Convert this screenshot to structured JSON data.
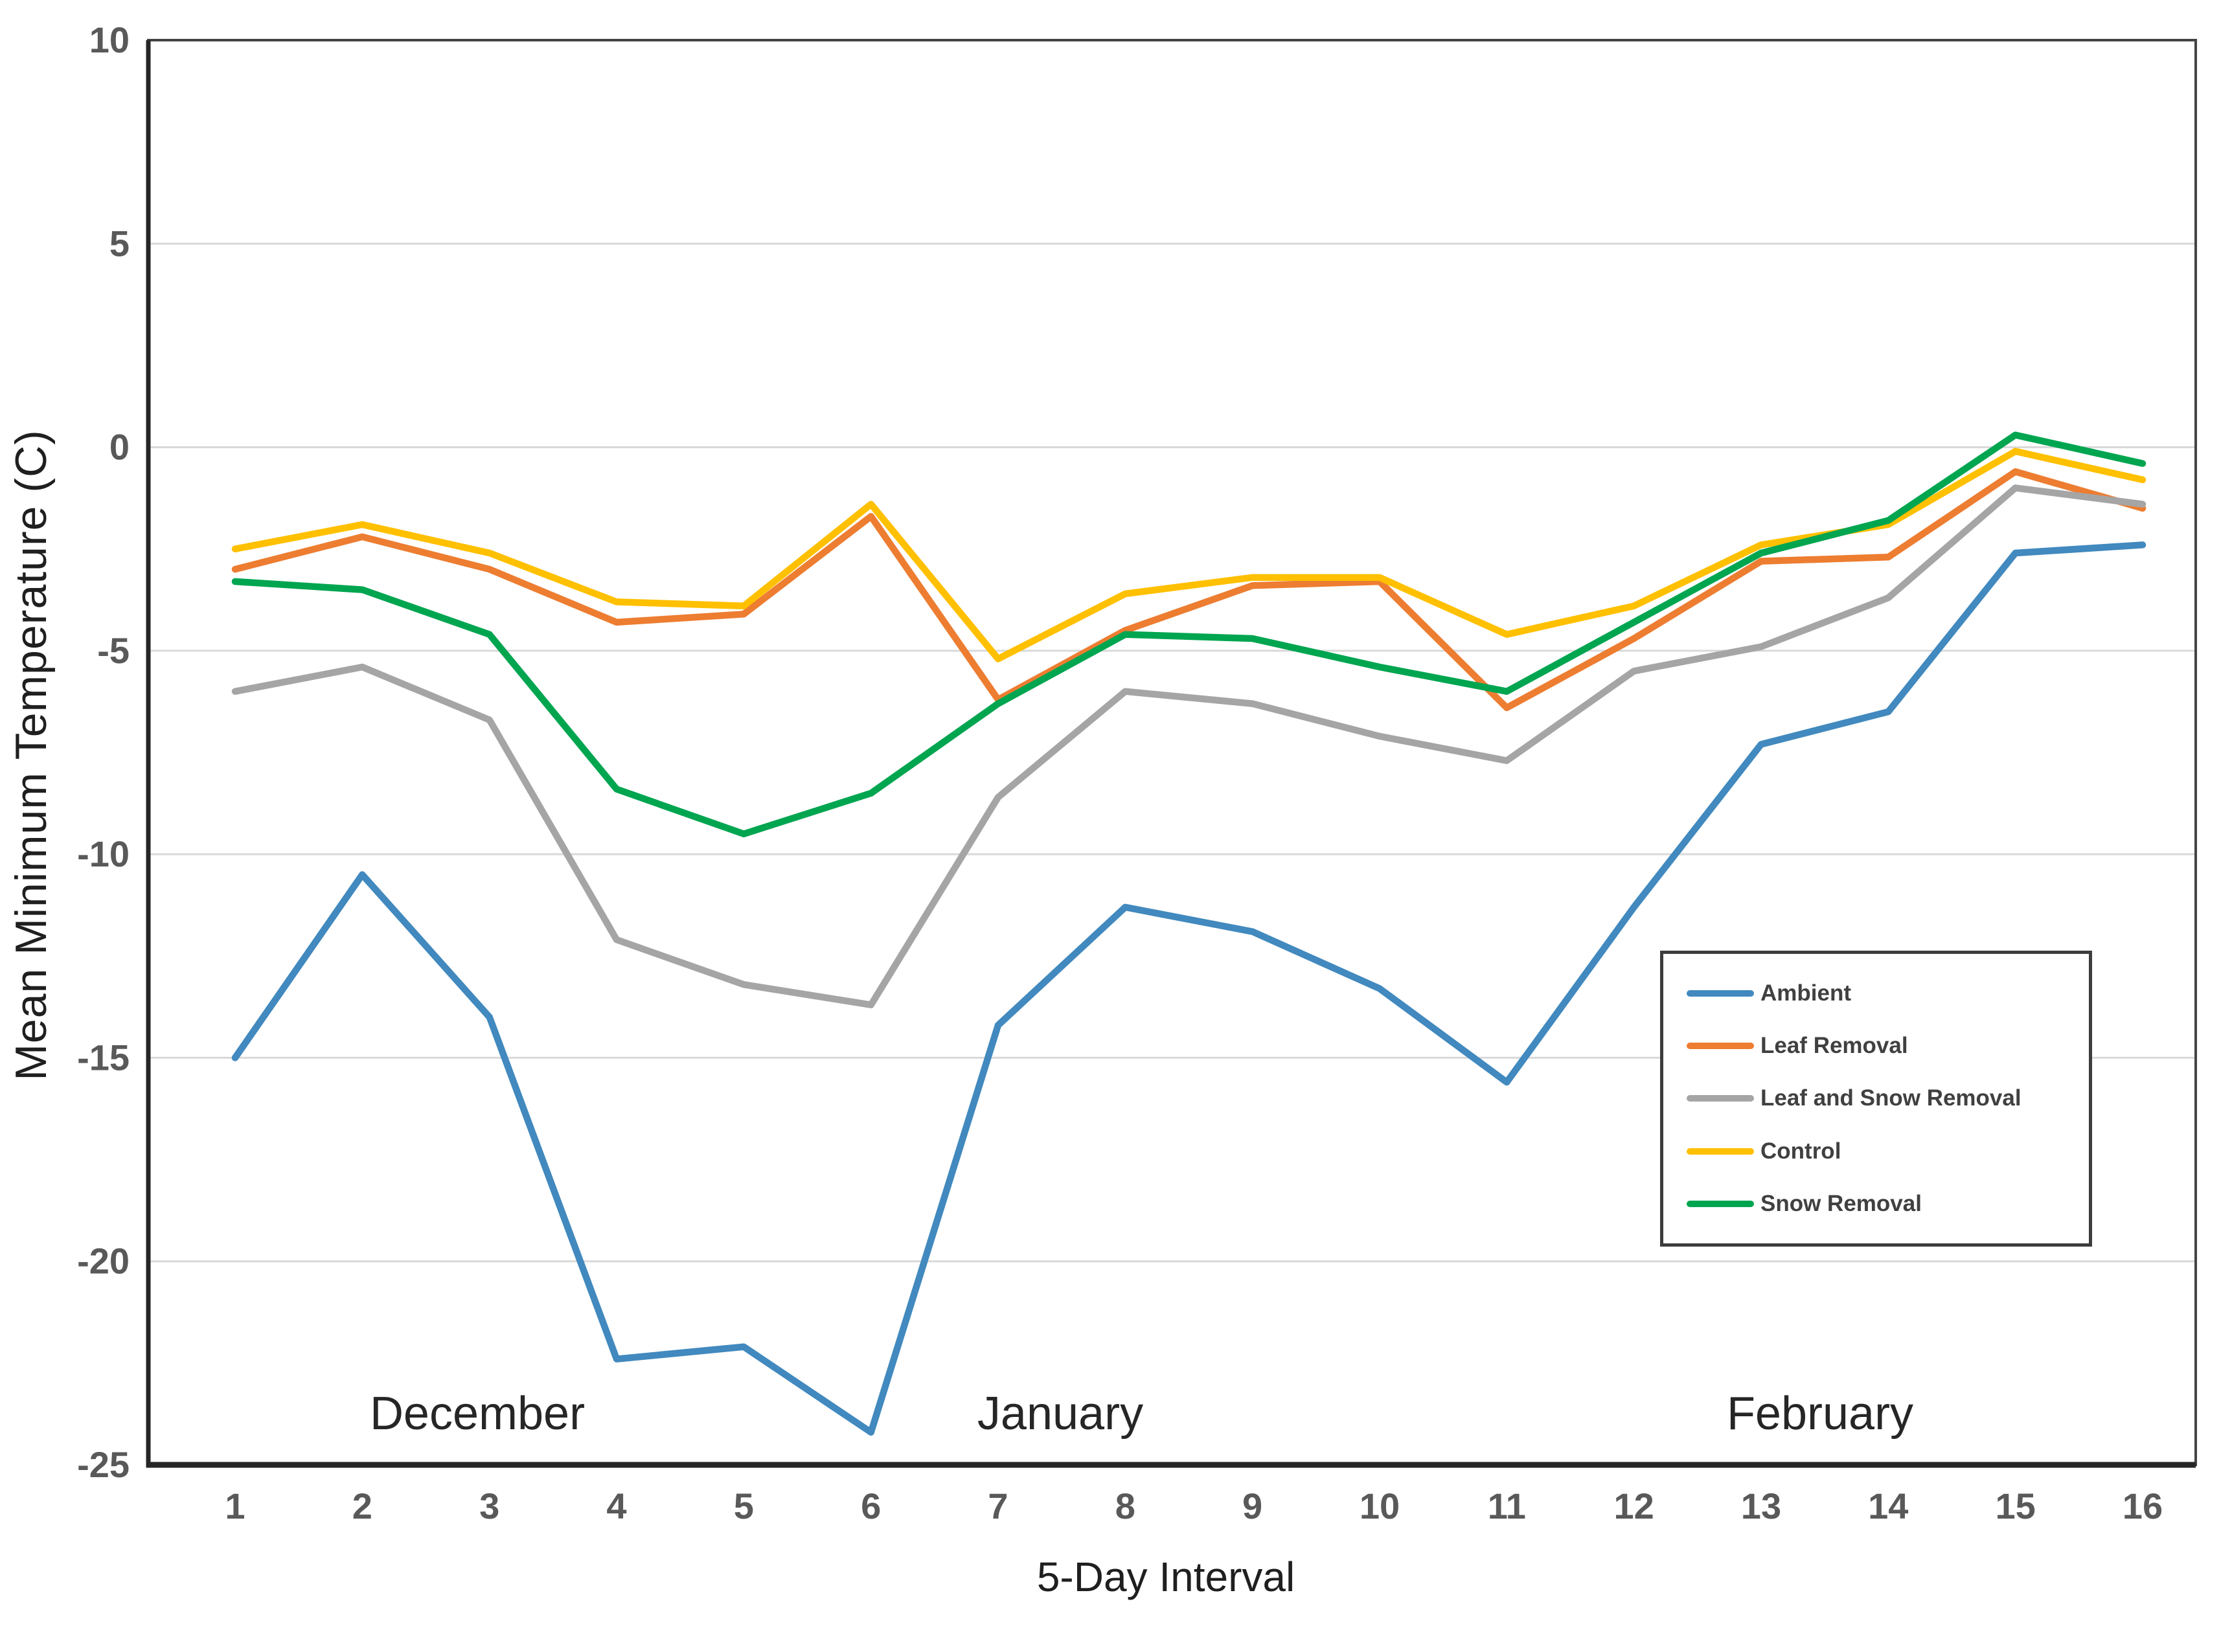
{
  "figure": {
    "y_axis_title": "Mean Minimum Temperature (C)",
    "x_axis_title": "5-Day Interval",
    "month_labels": [
      {
        "label": "December"
      },
      {
        "label": "January"
      },
      {
        "label": "February"
      }
    ]
  },
  "chart_data": {
    "type": "line",
    "title": "",
    "xlabel": "5-Day Interval",
    "ylabel": "Mean Minimum Temperature (C)",
    "categories": [
      "1",
      "2",
      "3",
      "4",
      "5",
      "6",
      "7",
      "8",
      "9",
      "10",
      "11",
      "12",
      "13",
      "14",
      "15",
      "16"
    ],
    "ylim": [
      -25,
      10
    ],
    "yticks": [
      10,
      5,
      0,
      -5,
      -10,
      -15,
      -20,
      -25
    ],
    "grid": "horizontal-only",
    "gridline_color": "#D9D9D9",
    "axis_color": "#262626",
    "frame_color": "#444444",
    "tick_label_color": "#595959",
    "legend_position": "inside-right-box",
    "months_span_note": "December over intervals 1-6, January over 7-11, February over 12-16",
    "series": [
      {
        "name": "Ambient",
        "color": "#4189BE",
        "values": [
          -15.0,
          -10.5,
          -14.0,
          -22.4,
          -22.1,
          -24.2,
          -14.2,
          -11.3,
          -11.9,
          -13.3,
          -15.6,
          -11.3,
          -7.3,
          -6.5,
          -2.6,
          -2.4
        ]
      },
      {
        "name": "Leaf Removal",
        "color": "#ED7D31",
        "values": [
          -3.0,
          -2.2,
          -3.0,
          -4.3,
          -4.1,
          -1.7,
          -6.2,
          -4.5,
          -3.4,
          -3.3,
          -6.4,
          -4.7,
          -2.8,
          -2.7,
          -0.6,
          -1.5
        ]
      },
      {
        "name": "Leaf and Snow Removal",
        "color": "#A5A5A5",
        "values": [
          -6.0,
          -5.4,
          -6.7,
          -12.1,
          -13.2,
          -13.7,
          -8.6,
          -6.0,
          -6.3,
          -7.1,
          -7.7,
          -5.5,
          -4.9,
          -3.7,
          -1.0,
          -1.4
        ]
      },
      {
        "name": "Control",
        "color": "#FFC000",
        "values": [
          -2.5,
          -1.9,
          -2.6,
          -3.8,
          -3.9,
          -1.4,
          -5.2,
          -3.6,
          -3.2,
          -3.2,
          -4.6,
          -3.9,
          -2.4,
          -1.9,
          -0.1,
          -0.8
        ]
      },
      {
        "name": "Snow Removal",
        "color": "#00A550",
        "values": [
          -3.3,
          -3.5,
          -4.6,
          -8.4,
          -9.5,
          -8.5,
          -6.3,
          -4.6,
          -4.7,
          -5.4,
          -6.0,
          -4.3,
          -2.6,
          -1.8,
          0.3,
          -0.4
        ]
      }
    ]
  }
}
